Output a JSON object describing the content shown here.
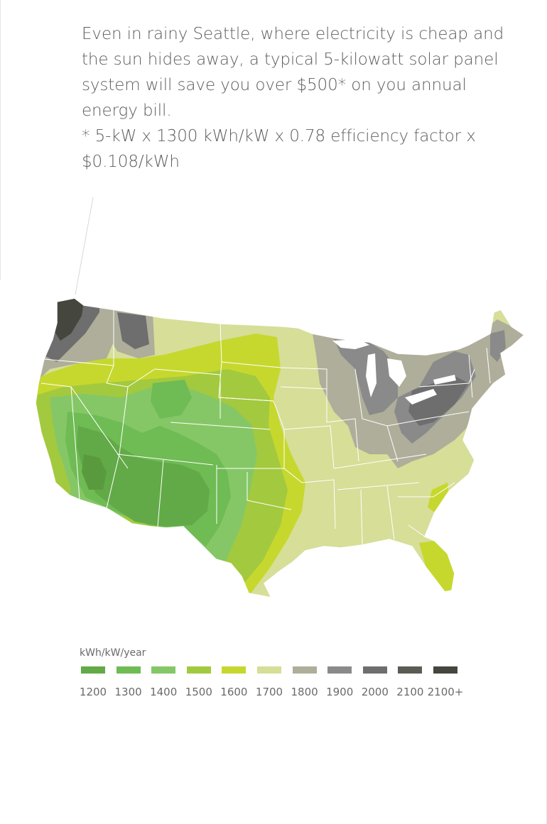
{
  "caption": {
    "line1": "Even in rainy Seattle, where electricity is cheap and",
    "line2": "the sun hides away, a typical 5-kilowatt solar panel",
    "line3": "system will save you over $500* on you annual",
    "line4": "energy bill.",
    "line5": "* 5-kW x 1300 kWh/kW x 0.78 efficiency factor x",
    "line6": "$0.108/kWh"
  },
  "legend": {
    "unit": "kWh/kW/year",
    "items": [
      {
        "label": "1200",
        "color": "#62aa47"
      },
      {
        "label": "1300",
        "color": "#6fbb54"
      },
      {
        "label": "1400",
        "color": "#85c766"
      },
      {
        "label": "1500",
        "color": "#a3c93f"
      },
      {
        "label": "1600",
        "color": "#c6d82e"
      },
      {
        "label": "1700",
        "color": "#d6de98"
      },
      {
        "label": "1800",
        "color": "#aeae9a"
      },
      {
        "label": "1900",
        "color": "#8a8a8a"
      },
      {
        "label": "2000",
        "color": "#6e6e6e"
      },
      {
        "label": "2100",
        "color": "#5b5d55"
      },
      {
        "label": "2100+",
        "color": "#45463e"
      }
    ]
  }
}
